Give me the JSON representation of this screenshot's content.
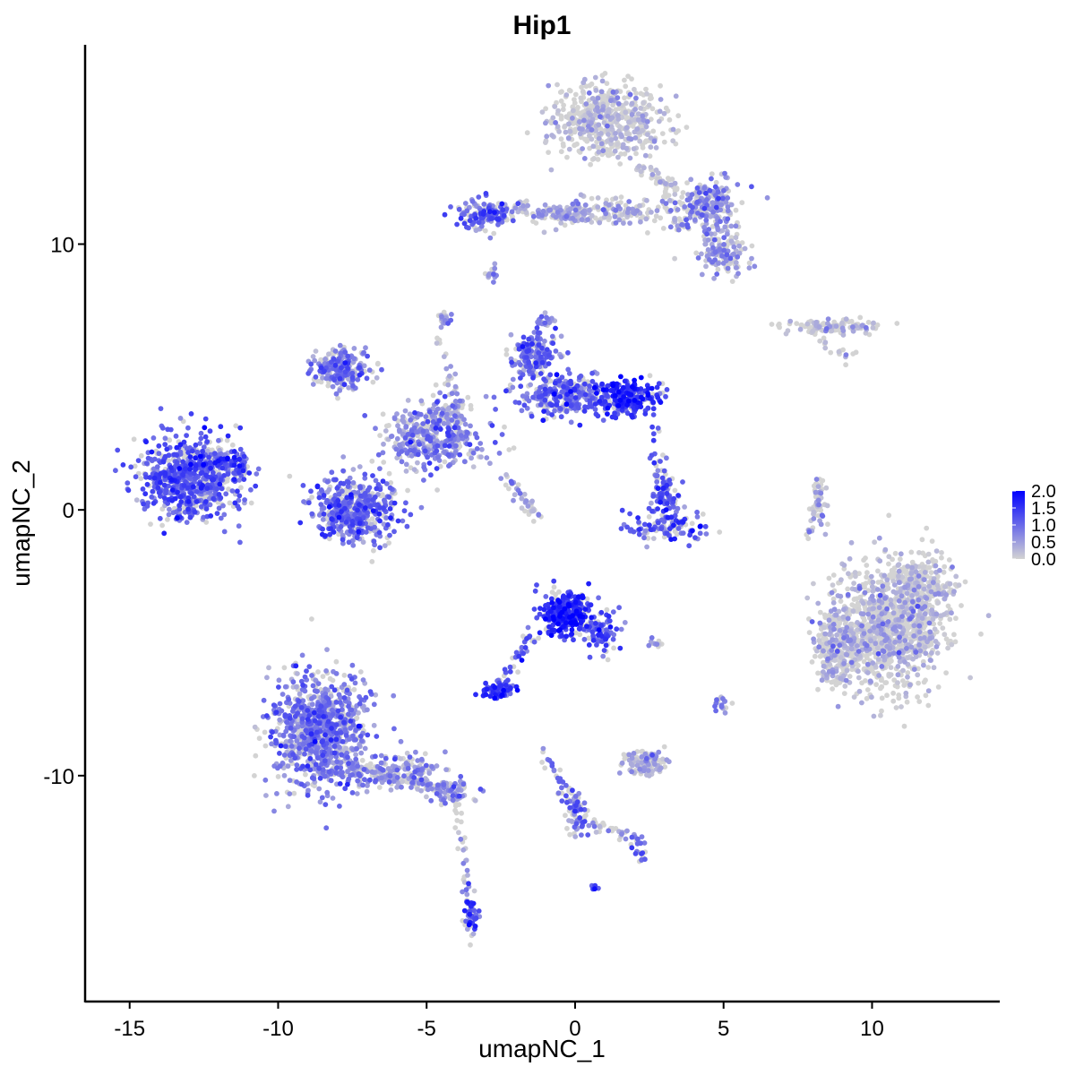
{
  "chart_data": {
    "type": "scatter",
    "title": "Hip1",
    "xlabel": "umapNC_1",
    "ylabel": "umapNC_2",
    "xlim": [
      -16.5,
      14.3
    ],
    "ylim": [
      -18.5,
      17.5
    ],
    "x_ticks": [
      -15,
      -10,
      -5,
      0,
      5,
      10
    ],
    "x_tick_labels": [
      "-15",
      "-10",
      "-5",
      "0",
      "5",
      "10"
    ],
    "y_ticks": [
      -10,
      0,
      10
    ],
    "y_tick_labels": [
      "-10",
      "0",
      "10"
    ],
    "grid": false,
    "legend": {
      "placement": "right",
      "type": "colorbar",
      "min": 0,
      "max": 2,
      "ticks": [
        2.0,
        1.5,
        1.0,
        0.5,
        0.0
      ],
      "tick_labels": [
        "2.0",
        "1.5",
        "1.0",
        "0.5",
        "0.0"
      ],
      "color_low": "#d3d3d3",
      "color_high": "#0000ff"
    },
    "clusters": [
      {
        "cx": -13.0,
        "cy": 1.2,
        "sx": 1.2,
        "sy": 1.0,
        "n": 700,
        "expr": 1.1
      },
      {
        "cx": -11.7,
        "cy": 1.6,
        "sx": 0.45,
        "sy": 0.5,
        "n": 80,
        "expr": 1.0
      },
      {
        "cx": -8.6,
        "cy": -8.4,
        "sx": 1.1,
        "sy": 1.4,
        "n": 900,
        "expr": 0.8
      },
      {
        "cx": -6.2,
        "cy": -9.9,
        "sx": 1.3,
        "sy": 0.45,
        "n": 160,
        "expr": 0.6
      },
      {
        "cx": -4.2,
        "cy": -10.6,
        "sx": 0.6,
        "sy": 0.35,
        "n": 60,
        "expr": 0.6
      },
      {
        "cx": -3.5,
        "cy": -15.3,
        "sx": 0.15,
        "sy": 0.7,
        "n": 55,
        "expr": 1.2
      },
      {
        "cx": -7.4,
        "cy": 0.0,
        "sx": 0.9,
        "sy": 0.75,
        "n": 500,
        "expr": 1.0
      },
      {
        "cx": -7.9,
        "cy": 5.3,
        "sx": 0.7,
        "sy": 0.5,
        "n": 220,
        "expr": 0.8
      },
      {
        "cx": -4.7,
        "cy": 2.8,
        "sx": 1.1,
        "sy": 0.9,
        "n": 380,
        "expr": 0.7
      },
      {
        "cx": -1.4,
        "cy": 5.8,
        "sx": 0.5,
        "sy": 0.6,
        "n": 180,
        "expr": 0.9
      },
      {
        "cx": -0.3,
        "cy": 4.3,
        "sx": 1.0,
        "sy": 0.5,
        "n": 300,
        "expr": 1.0
      },
      {
        "cx": 1.8,
        "cy": 4.2,
        "sx": 0.7,
        "sy": 0.45,
        "n": 220,
        "expr": 1.5
      },
      {
        "cx": -3.1,
        "cy": 11.1,
        "sx": 0.6,
        "sy": 0.35,
        "n": 140,
        "expr": 1.0
      },
      {
        "cx": 1.1,
        "cy": 14.6,
        "sx": 1.3,
        "sy": 0.9,
        "n": 550,
        "expr": 0.05
      },
      {
        "cx": 0.6,
        "cy": 11.2,
        "sx": 1.7,
        "sy": 0.35,
        "n": 180,
        "expr": 0.3
      },
      {
        "cx": 4.5,
        "cy": 11.5,
        "sx": 0.7,
        "sy": 0.6,
        "n": 200,
        "expr": 0.6
      },
      {
        "cx": 5.0,
        "cy": 9.6,
        "sx": 0.55,
        "sy": 0.55,
        "n": 140,
        "expr": 0.5
      },
      {
        "cx": 8.6,
        "cy": 6.9,
        "sx": 1.1,
        "sy": 0.18,
        "n": 110,
        "expr": 0.1
      },
      {
        "cx": 3.0,
        "cy": 0.6,
        "sx": 0.35,
        "sy": 0.5,
        "n": 90,
        "expr": 1.1
      },
      {
        "cx": 3.2,
        "cy": -0.6,
        "sx": 0.9,
        "sy": 0.35,
        "n": 110,
        "expr": 1.1
      },
      {
        "cx": 8.2,
        "cy": 0.2,
        "sx": 0.2,
        "sy": 0.6,
        "n": 30,
        "expr": 0.3
      },
      {
        "cx": 10.5,
        "cy": -4.4,
        "sx": 1.25,
        "sy": 1.6,
        "n": 1100,
        "expr": 0.12
      },
      {
        "cx": 8.7,
        "cy": -5.2,
        "sx": 0.4,
        "sy": 0.9,
        "n": 200,
        "expr": 0.2
      },
      {
        "cx": 11.8,
        "cy": -2.8,
        "sx": 0.6,
        "sy": 0.7,
        "n": 200,
        "expr": 0.1
      },
      {
        "cx": -0.3,
        "cy": -3.9,
        "sx": 0.55,
        "sy": 0.55,
        "n": 320,
        "expr": 1.5
      },
      {
        "cx": 0.9,
        "cy": -4.6,
        "sx": 0.35,
        "sy": 0.6,
        "n": 80,
        "expr": 1.2
      },
      {
        "cx": -2.6,
        "cy": -6.8,
        "sx": 0.35,
        "sy": 0.2,
        "n": 80,
        "expr": 1.4
      },
      {
        "cx": 2.4,
        "cy": -9.5,
        "sx": 0.55,
        "sy": 0.35,
        "n": 110,
        "expr": 0.3
      },
      {
        "cx": 0.0,
        "cy": -11.3,
        "sx": 0.25,
        "sy": 0.6,
        "n": 55,
        "expr": 0.9
      },
      {
        "cx": 4.9,
        "cy": -7.3,
        "sx": 0.2,
        "sy": 0.2,
        "n": 20,
        "expr": 0.5
      },
      {
        "cx": -1.0,
        "cy": 7.1,
        "sx": 0.2,
        "sy": 0.2,
        "n": 15,
        "expr": 0.5
      },
      {
        "cx": -4.4,
        "cy": 7.2,
        "sx": 0.15,
        "sy": 0.2,
        "n": 20,
        "expr": 0.6
      },
      {
        "cx": -2.8,
        "cy": 8.9,
        "sx": 0.12,
        "sy": 0.2,
        "n": 15,
        "expr": 0.5
      },
      {
        "cx": 2.7,
        "cy": -5.0,
        "sx": 0.15,
        "sy": 0.1,
        "n": 12,
        "expr": 0.5
      },
      {
        "cx": 0.6,
        "cy": -14.2,
        "sx": 0.1,
        "sy": 0.08,
        "n": 8,
        "expr": 1.3
      }
    ],
    "branches": [
      {
        "x0": -4.7,
        "y0": 7.0,
        "x1": -3.8,
        "y1": 3.2,
        "n": 40,
        "expr": 0.4
      },
      {
        "x0": -2.4,
        "y0": 1.2,
        "x1": -1.1,
        "y1": -0.4,
        "n": 40,
        "expr": 0.4
      },
      {
        "x0": -5.9,
        "y0": 2.6,
        "x1": -3.7,
        "y1": 4.1,
        "n": 40,
        "expr": 0.6
      },
      {
        "x0": -2.0,
        "y0": 11.4,
        "x1": 0.2,
        "y1": 11.0,
        "n": 60,
        "expr": 0.4
      },
      {
        "x0": -8.5,
        "y0": -9.5,
        "x1": -4.0,
        "y1": -10.5,
        "n": 100,
        "expr": 0.7
      },
      {
        "x0": -4.0,
        "y0": -10.6,
        "x1": -3.6,
        "y1": -14.5,
        "n": 30,
        "expr": 0.3
      },
      {
        "x0": -1.4,
        "y0": -4.6,
        "x1": -2.6,
        "y1": -6.7,
        "n": 40,
        "expr": 1.2
      },
      {
        "x0": -1.0,
        "y0": -9.2,
        "x1": 0.0,
        "y1": -11.2,
        "n": 40,
        "expr": 0.8
      },
      {
        "x0": 0.2,
        "y0": -11.6,
        "x1": 2.3,
        "y1": -12.5,
        "n": 40,
        "expr": 0.6
      },
      {
        "x0": 2.0,
        "y0": -12.6,
        "x1": 2.4,
        "y1": -13.2,
        "n": 15,
        "expr": 1.0
      },
      {
        "x0": 2.6,
        "y0": 3.0,
        "x1": 2.9,
        "y1": 1.2,
        "n": 20,
        "expr": 1.0
      },
      {
        "x0": 8.3,
        "y0": 1.2,
        "x1": 7.9,
        "y1": -1.2,
        "n": 30,
        "expr": 0.3
      },
      {
        "x0": 8.2,
        "y0": 6.3,
        "x1": 9.2,
        "y1": 5.8,
        "n": 15,
        "expr": 0.2
      },
      {
        "x0": 3.0,
        "y0": 11.8,
        "x1": 3.6,
        "y1": 10.5,
        "n": 30,
        "expr": 0.4
      },
      {
        "x0": 2.0,
        "y0": 13.0,
        "x1": 3.8,
        "y1": 11.8,
        "n": 50,
        "expr": 0.2
      }
    ]
  }
}
